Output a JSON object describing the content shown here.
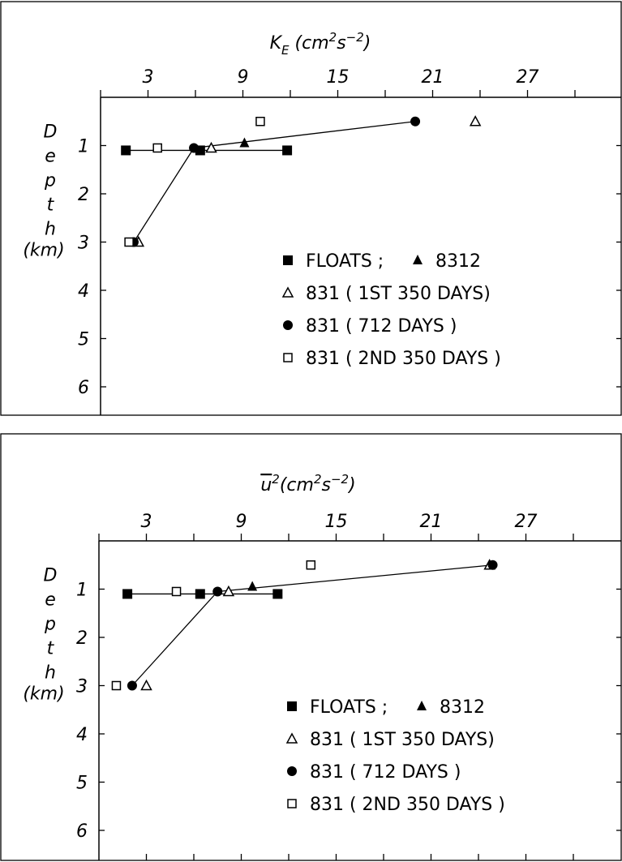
{
  "chart_data": [
    {
      "type": "scatter",
      "title_parts": {
        "base": "K",
        "sub": "E",
        "rest": " (cm",
        "sup1": "2",
        "mid": "s",
        "sup2": "−2",
        "end": ")"
      },
      "xticks": [
        "3",
        "9",
        "15",
        "21",
        "27"
      ],
      "xlim": [
        0,
        33
      ],
      "yticks": [
        "1",
        "2",
        "3",
        "4",
        "5",
        "6"
      ],
      "ylim": [
        0,
        6.5
      ],
      "ylabel_letters": [
        "D",
        "e",
        "p",
        "t",
        "h"
      ],
      "ylabel_unit": "(km)",
      "legend": [
        {
          "marker": "square-filled",
          "label": "FLOATS ;",
          "marker2": "triangle-filled",
          "label2": "8312"
        },
        {
          "marker": "triangle-open",
          "label": "831 ( 1ST 350 DAYS)"
        },
        {
          "marker": "circle-filled",
          "label": "831 ( 712 DAYS )"
        },
        {
          "marker": "square-open",
          "label": "831 ( 2ND 350 DAYS )"
        }
      ],
      "series": [
        {
          "name": "FLOATS",
          "marker": "square-filled",
          "points": [
            [
              1.6,
              1.1
            ],
            [
              6.3,
              1.1
            ],
            [
              11.8,
              1.1
            ]
          ]
        },
        {
          "name": "8312",
          "marker": "triangle-filled",
          "points": [
            [
              9.1,
              0.95
            ]
          ]
        },
        {
          "name": "831 ( 1ST 350 DAYS)",
          "marker": "triangle-open",
          "points": [
            [
              23.7,
              0.5
            ],
            [
              7.0,
              1.05
            ],
            [
              2.4,
              3.0
            ]
          ]
        },
        {
          "name": "831 ( 712 DAYS )",
          "marker": "circle-filled",
          "points": [
            [
              19.9,
              0.5
            ],
            [
              5.9,
              1.05
            ],
            [
              2.1,
              3.0
            ]
          ]
        },
        {
          "name": "831 ( 2ND 350 DAYS )",
          "marker": "square-open",
          "points": [
            [
              10.1,
              0.5
            ],
            [
              3.6,
              1.05
            ],
            [
              1.8,
              3.0
            ]
          ]
        }
      ],
      "lines": [
        [
          [
            1.6,
            1.1
          ],
          [
            11.8,
            1.1
          ]
        ],
        [
          [
            2.1,
            3.0
          ],
          [
            5.9,
            1.05
          ],
          [
            19.9,
            0.5
          ]
        ]
      ]
    },
    {
      "type": "scatter",
      "title_parts": {
        "base": "u",
        "overbar": true,
        "sup0": "2",
        "rest": "(cm",
        "sup1": "2",
        "mid": "s",
        "sup2": "−2",
        "end": ")"
      },
      "xticks": [
        "3",
        "9",
        "15",
        "21",
        "27"
      ],
      "xlim": [
        0,
        33
      ],
      "yticks": [
        "1",
        "2",
        "3",
        "4",
        "5",
        "6"
      ],
      "ylim": [
        0,
        6.5
      ],
      "ylabel_letters": [
        "D",
        "e",
        "p",
        "t",
        "h"
      ],
      "ylabel_unit": "(km)",
      "legend": [
        {
          "marker": "square-filled",
          "label": "FLOATS ;",
          "marker2": "triangle-filled",
          "label2": "8312"
        },
        {
          "marker": "triangle-open",
          "label": "831 ( 1ST 350 DAYS)"
        },
        {
          "marker": "circle-filled",
          "label": "831 ( 712 DAYS )"
        },
        {
          "marker": "square-open",
          "label": "831 ( 2ND 350 DAYS )"
        }
      ],
      "series": [
        {
          "name": "FLOATS",
          "marker": "square-filled",
          "points": [
            [
              1.8,
              1.1
            ],
            [
              6.4,
              1.1
            ],
            [
              11.3,
              1.1
            ]
          ]
        },
        {
          "name": "8312",
          "marker": "triangle-filled",
          "points": [
            [
              9.7,
              0.95
            ]
          ]
        },
        {
          "name": "831 ( 1ST 350 DAYS)",
          "marker": "triangle-open",
          "points": [
            [
              24.7,
              0.5
            ],
            [
              8.2,
              1.05
            ],
            [
              3.0,
              3.0
            ]
          ]
        },
        {
          "name": "831 ( 712 DAYS )",
          "marker": "circle-filled",
          "points": [
            [
              24.9,
              0.5
            ],
            [
              7.5,
              1.05
            ],
            [
              2.1,
              3.0
            ]
          ]
        },
        {
          "name": "831 ( 2ND 350 DAYS )",
          "marker": "square-open",
          "points": [
            [
              13.4,
              0.5
            ],
            [
              4.9,
              1.05
            ],
            [
              1.1,
              3.0
            ]
          ]
        }
      ],
      "lines": [
        [
          [
            1.8,
            1.1
          ],
          [
            11.3,
            1.1
          ]
        ],
        [
          [
            2.1,
            3.0
          ],
          [
            7.5,
            1.05
          ],
          [
            24.9,
            0.5
          ]
        ]
      ]
    }
  ]
}
